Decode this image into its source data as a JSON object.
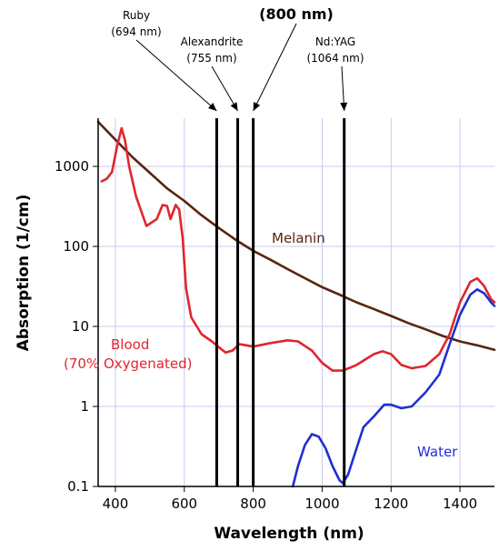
{
  "chart_data": {
    "type": "line",
    "title": "",
    "xlabel": "Wavelength (nm)",
    "ylabel": "Absorption (1/cm)",
    "xlim": [
      350,
      1500
    ],
    "ylim": [
      0.1,
      4000
    ],
    "y_scale": "log",
    "grid": true,
    "x_ticks": [
      {
        "value": 400,
        "label": "400"
      },
      {
        "value": 600,
        "label": "600"
      },
      {
        "value": 800,
        "label": "800"
      },
      {
        "value": 1000,
        "label": "1000"
      },
      {
        "value": 1200,
        "label": "1200"
      },
      {
        "value": 1400,
        "label": "1400"
      }
    ],
    "y_ticks": [
      {
        "value": 0.1,
        "label": "0.1"
      },
      {
        "value": 1,
        "label": "1"
      },
      {
        "value": 10,
        "label": "10"
      },
      {
        "value": 100,
        "label": "100"
      },
      {
        "value": 1000,
        "label": "1000"
      }
    ],
    "series": [
      {
        "name": "Melanin",
        "color": "#5a2410",
        "points": [
          [
            350,
            3600
          ],
          [
            400,
            2150
          ],
          [
            450,
            1300
          ],
          [
            500,
            830
          ],
          [
            550,
            530
          ],
          [
            600,
            370
          ],
          [
            650,
            245
          ],
          [
            700,
            170
          ],
          [
            750,
            120
          ],
          [
            800,
            88
          ],
          [
            850,
            68
          ],
          [
            900,
            52
          ],
          [
            950,
            40
          ],
          [
            1000,
            31
          ],
          [
            1050,
            25
          ],
          [
            1100,
            20
          ],
          [
            1150,
            16.5
          ],
          [
            1200,
            13.5
          ],
          [
            1250,
            11
          ],
          [
            1300,
            9.2
          ],
          [
            1350,
            7.6
          ],
          [
            1400,
            6.5
          ],
          [
            1450,
            5.8
          ],
          [
            1500,
            5.1
          ]
        ]
      },
      {
        "name": "Blood",
        "label_lines": [
          "Blood",
          "(70% Oxygenated)"
        ],
        "color": "#e0262c",
        "points": [
          [
            360,
            650
          ],
          [
            375,
            700
          ],
          [
            390,
            850
          ],
          [
            405,
            1800
          ],
          [
            418,
            3000
          ],
          [
            428,
            2100
          ],
          [
            440,
            1000
          ],
          [
            460,
            420
          ],
          [
            490,
            180
          ],
          [
            520,
            220
          ],
          [
            537,
            330
          ],
          [
            550,
            320
          ],
          [
            560,
            220
          ],
          [
            575,
            330
          ],
          [
            585,
            290
          ],
          [
            595,
            130
          ],
          [
            605,
            30
          ],
          [
            620,
            13
          ],
          [
            650,
            8
          ],
          [
            680,
            6.5
          ],
          [
            700,
            5.5
          ],
          [
            720,
            4.7
          ],
          [
            740,
            5
          ],
          [
            760,
            6
          ],
          [
            780,
            5.8
          ],
          [
            800,
            5.6
          ],
          [
            850,
            6.2
          ],
          [
            900,
            6.7
          ],
          [
            930,
            6.5
          ],
          [
            970,
            5
          ],
          [
            1000,
            3.5
          ],
          [
            1030,
            2.8
          ],
          [
            1060,
            2.8
          ],
          [
            1100,
            3.3
          ],
          [
            1150,
            4.5
          ],
          [
            1175,
            4.9
          ],
          [
            1200,
            4.5
          ],
          [
            1230,
            3.3
          ],
          [
            1260,
            3.0
          ],
          [
            1300,
            3.2
          ],
          [
            1340,
            4.5
          ],
          [
            1370,
            8
          ],
          [
            1400,
            20
          ],
          [
            1430,
            36
          ],
          [
            1450,
            40
          ],
          [
            1470,
            32
          ],
          [
            1490,
            22
          ],
          [
            1500,
            20
          ]
        ]
      },
      {
        "name": "Water",
        "color": "#1f2fd0",
        "points": [
          [
            915,
            0.1
          ],
          [
            930,
            0.18
          ],
          [
            950,
            0.33
          ],
          [
            970,
            0.45
          ],
          [
            990,
            0.42
          ],
          [
            1010,
            0.3
          ],
          [
            1030,
            0.18
          ],
          [
            1050,
            0.12
          ],
          [
            1060,
            0.11
          ],
          [
            1075,
            0.14
          ],
          [
            1100,
            0.3
          ],
          [
            1120,
            0.55
          ],
          [
            1150,
            0.75
          ],
          [
            1180,
            1.05
          ],
          [
            1200,
            1.05
          ],
          [
            1230,
            0.95
          ],
          [
            1260,
            1.0
          ],
          [
            1300,
            1.5
          ],
          [
            1340,
            2.5
          ],
          [
            1370,
            6
          ],
          [
            1400,
            14
          ],
          [
            1430,
            25
          ],
          [
            1450,
            29
          ],
          [
            1470,
            26
          ],
          [
            1490,
            20
          ],
          [
            1500,
            18
          ]
        ]
      }
    ],
    "lasers": [
      {
        "name": "Ruby",
        "wavelength_label": "(694 nm)",
        "x": 694
      },
      {
        "name": "Alexandrite",
        "wavelength_label": "(755 nm)",
        "x": 755
      },
      {
        "name": "",
        "wavelength_label": "(800 nm)",
        "x": 800
      },
      {
        "name": "Nd:YAG",
        "wavelength_label": "(1064 nm)",
        "x": 1064
      }
    ]
  }
}
